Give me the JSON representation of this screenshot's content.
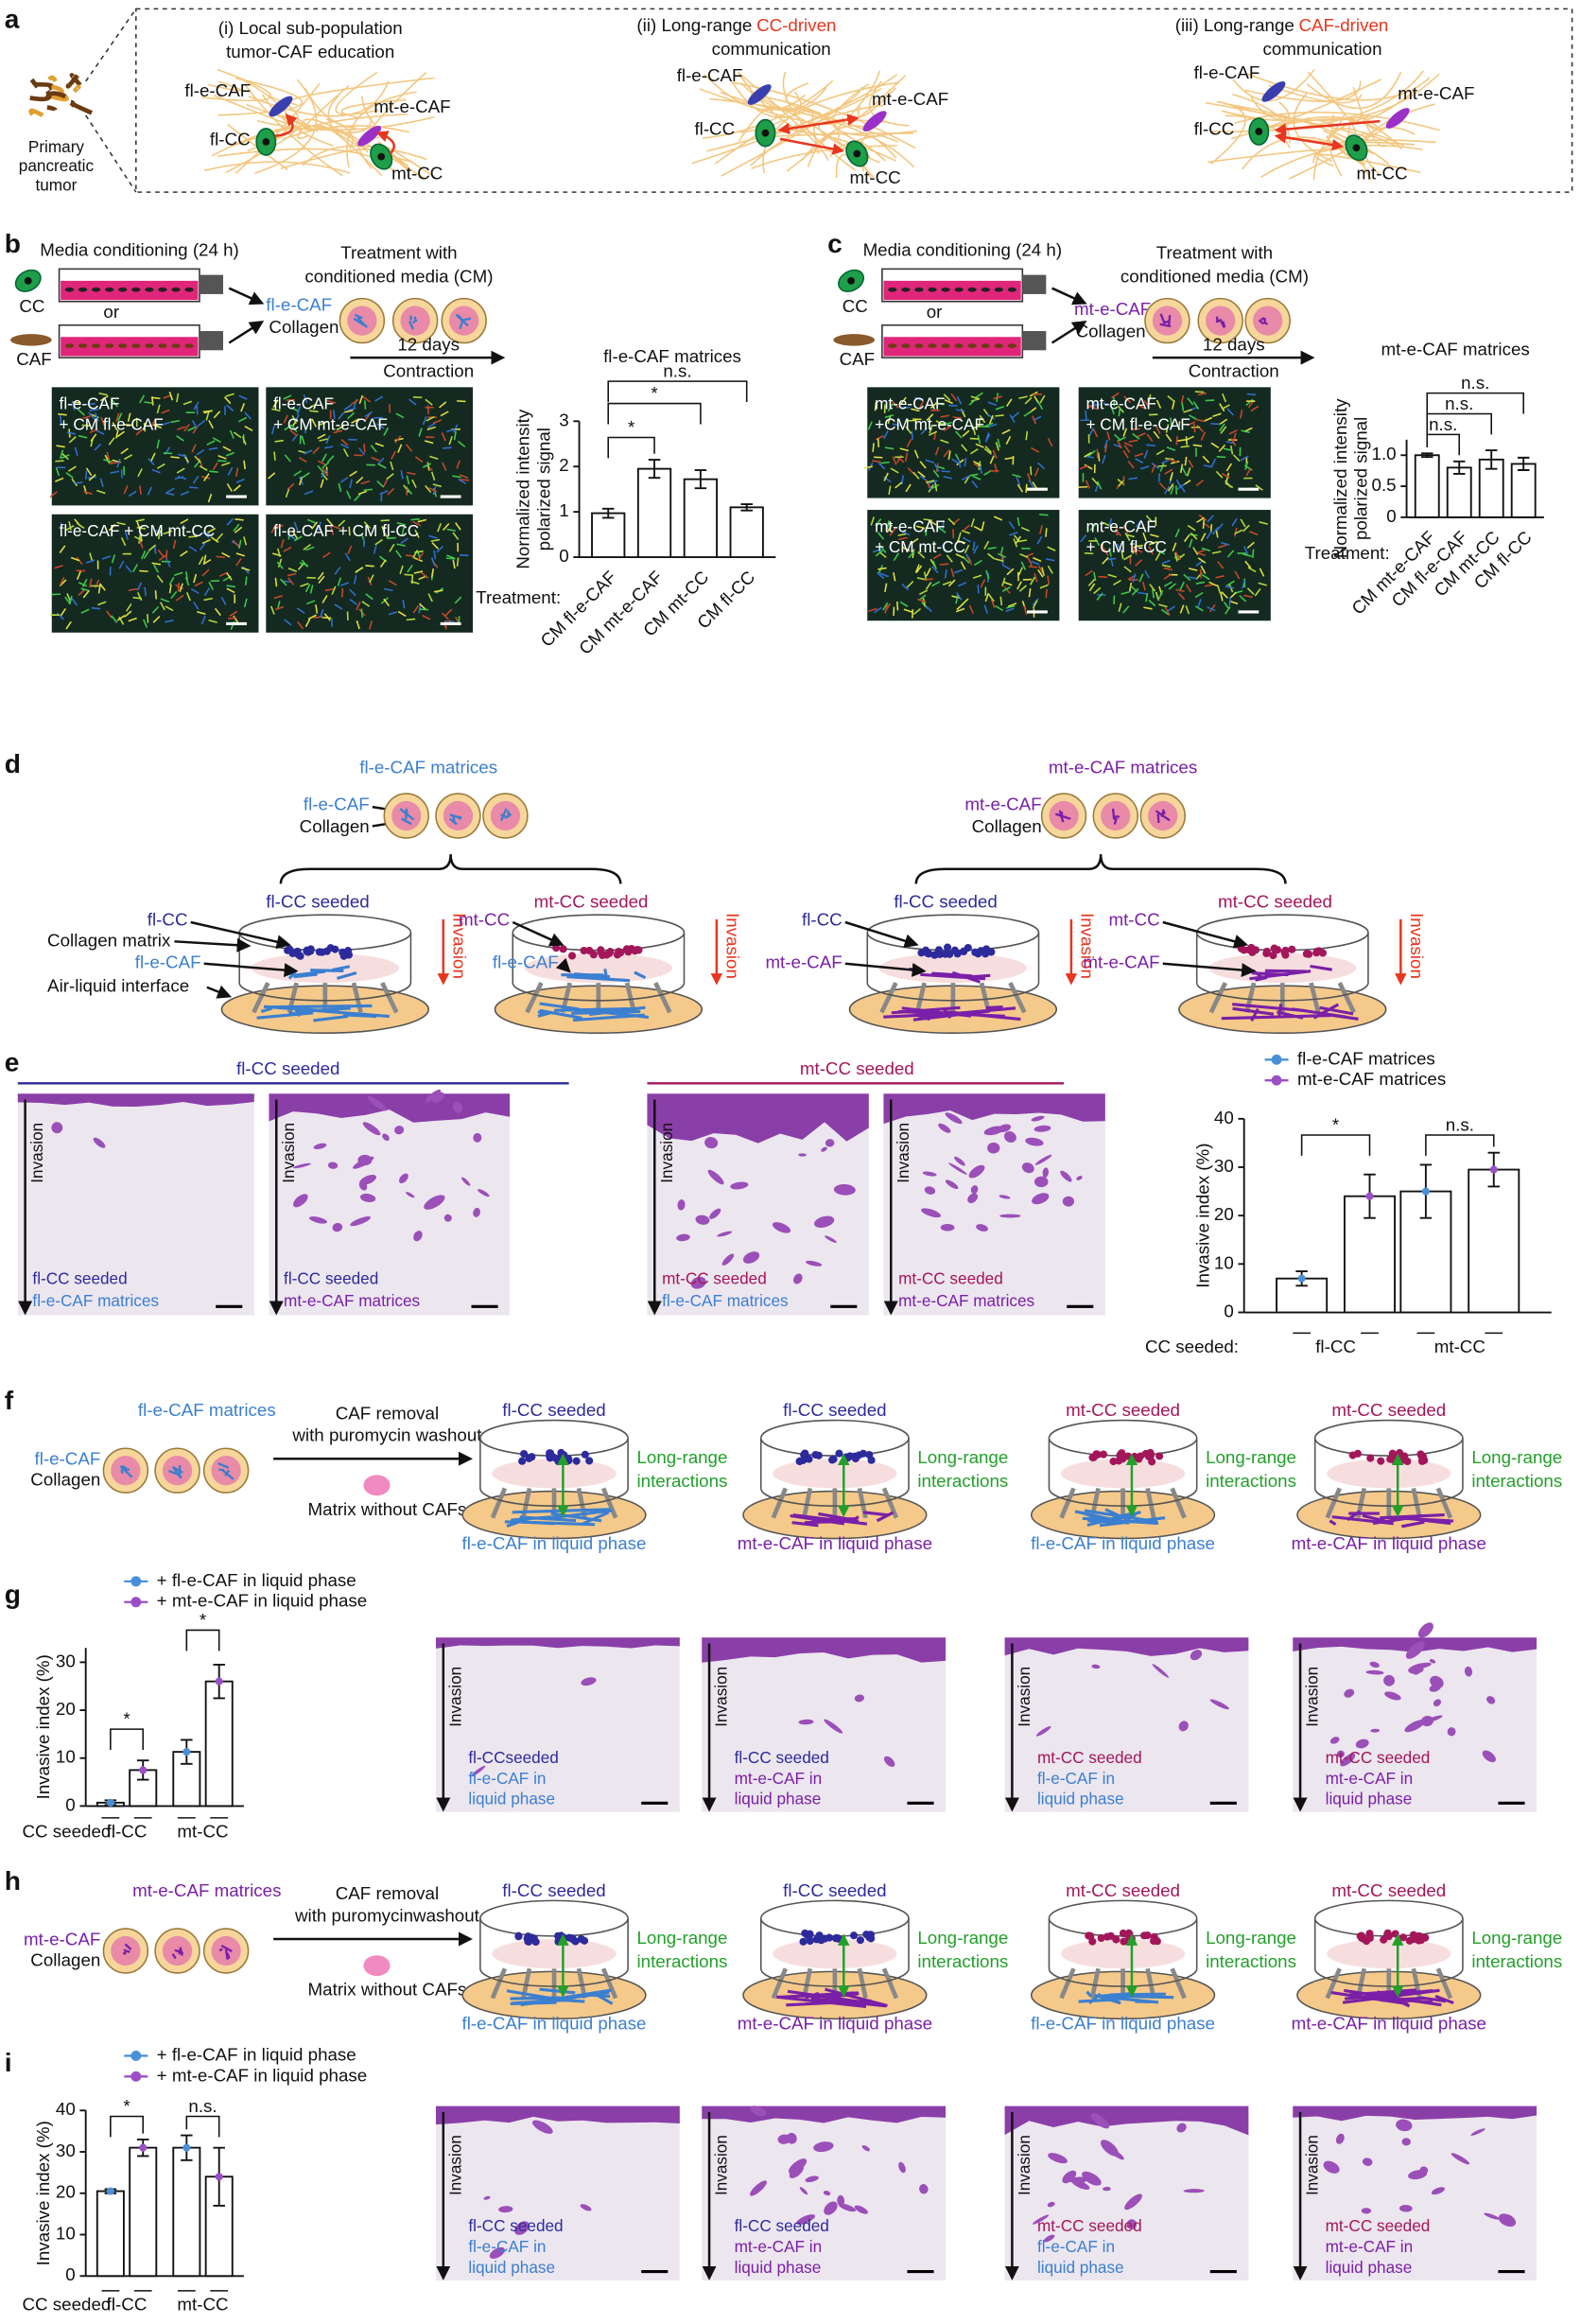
{
  "panels": {
    "a": {
      "letter": "a",
      "tumor": [
        "Primary",
        "pancreatic",
        "tumor"
      ],
      "i": {
        "title": [
          "(i) Local sub-population",
          "tumor-CAF education"
        ],
        "labels": [
          "fl-e-CAF",
          "mt-e-CAF",
          "fl-CC",
          "mt-CC"
        ]
      },
      "ii": {
        "title": [
          "(ii) Long-range",
          "CC-driven",
          "communication"
        ],
        "labels": [
          "fl-e-CAF",
          "mt-e-CAF",
          "fl-CC",
          "mt-CC"
        ]
      },
      "iii": {
        "title": [
          "(iii) Long-range",
          "CAF-driven",
          "communication"
        ],
        "labels": [
          "fl-e-CAF",
          "mt-e-CAF",
          "fl-CC",
          "mt-CC"
        ]
      }
    },
    "b": {
      "letter": "b",
      "media": "Media conditioning (24 h)",
      "cc": "CC",
      "or": "or",
      "caf": "CAF",
      "treat": [
        "Treatment with",
        "conditioned media (CM)"
      ],
      "cell": "fl-e-CAF",
      "collagen": "Collagen",
      "days": "12 days",
      "contraction": "Contraction",
      "images": [
        [
          "fl-e-CAF",
          "+ CM fl-e-CAF"
        ],
        [
          "fl-e-CAF",
          "+ CM mt-e-CAF"
        ],
        [
          "fl-e-CAF + CM mt-CC"
        ],
        [
          "fl-e-CAF + CM fl-CC"
        ]
      ]
    },
    "c": {
      "letter": "c",
      "media": "Media conditioning (24 h)",
      "cc": "CC",
      "or": "or",
      "caf": "CAF",
      "treat": [
        "Treatment with",
        "conditioned media (CM)"
      ],
      "cell": "mt-e-CAF",
      "collagen": "Collagen",
      "days": "12 days",
      "contraction": "Contraction",
      "images": [
        [
          "mt-e-CAF",
          "+CM mt-e-CAF"
        ],
        [
          "mt-e-CAF",
          "+ CM fl-e-CAF"
        ],
        [
          "mt-e-CAF",
          "+ CM mt-CC"
        ],
        [
          "mt-e-CAF",
          "+ CM fl-CC"
        ]
      ]
    },
    "d": {
      "letter": "d",
      "matrix": "Collagen matrix",
      "ali": "Air-liquid interface",
      "groups": [
        {
          "title": "fl-e-CAF matrices",
          "cell": "fl-e-CAF",
          "collagen": "Collagen"
        },
        {
          "title": "mt-e-CAF matrices",
          "cell": "mt-e-CAF",
          "collagen": "Collagen"
        }
      ],
      "dishes": [
        {
          "seeded": "fl-CC seeded",
          "cc": "fl-CC",
          "caf": "fl-e-CAF",
          "invasion": "Invasion"
        },
        {
          "seeded": "mt-CC seeded",
          "cc": "mt-CC",
          "caf": "fl-e-CAF",
          "invasion": "Invasion"
        },
        {
          "seeded": "fl-CC seeded",
          "cc": "fl-CC",
          "caf": "mt-e-CAF",
          "invasion": "Invasion"
        },
        {
          "seeded": "mt-CC seeded",
          "cc": "mt-CC",
          "caf": "mt-e-CAF",
          "invasion": "Invasion"
        }
      ]
    },
    "e": {
      "letter": "e",
      "groups": [
        "fl-CC seeded",
        "mt-CC seeded"
      ],
      "images": [
        {
          "invasion": "Invasion",
          "lines": [
            "fl-CC seeded",
            "fl-e-CAF matrices"
          ]
        },
        {
          "invasion": "Invasion",
          "lines": [
            "fl-CC seeded",
            "mt-e-CAF matrices"
          ]
        },
        {
          "invasion": "Invasion",
          "lines": [
            "mt-CC seeded",
            "fl-e-CAF matrices"
          ]
        },
        {
          "invasion": "Invasion",
          "lines": [
            "mt-CC seeded",
            "mt-e-CAF matrices"
          ]
        }
      ]
    },
    "f": {
      "letter": "f",
      "matrices": "fl-e-CAF matrices",
      "cell": "fl-e-CAF",
      "collagen": "Collagen",
      "removal": [
        "CAF removal",
        "with puromycin washout"
      ],
      "matrix": "Matrix without CAFs",
      "dishes": [
        {
          "seeded": "fl-CC seeded",
          "long": [
            "Long-range",
            "interactions"
          ],
          "liquid": "fl-e-CAF in liquid phase"
        },
        {
          "seeded": "fl-CC seeded",
          "long": [
            "Long-range",
            "interactions"
          ],
          "liquid": "mt-e-CAF in liquid phase"
        },
        {
          "seeded": "mt-CC seeded",
          "long": [
            "Long-range",
            "interactions"
          ],
          "liquid": "fl-e-CAF in liquid phase"
        },
        {
          "seeded": "mt-CC seeded",
          "long": [
            "Long-range",
            "interactions"
          ],
          "liquid": "mt-e-CAF in liquid phase"
        }
      ]
    },
    "g": {
      "letter": "g",
      "images": [
        {
          "invasion": "Invasion",
          "lines": [
            "fl-CCseeded",
            "fl-e-CAF in",
            "liquid phase"
          ]
        },
        {
          "invasion": "Invasion",
          "lines": [
            "fl-CC seeded",
            "mt-e-CAF in",
            "liquid phase"
          ]
        },
        {
          "invasion": "Invasion",
          "lines": [
            "mt-CC seeded",
            "fl-e-CAF in",
            "liquid phase"
          ]
        },
        {
          "invasion": "Invasion",
          "lines": [
            "mt-CC seeded",
            "mt-e-CAF in",
            "liquid phase"
          ]
        }
      ]
    },
    "h": {
      "letter": "h",
      "matrices": "mt-e-CAF matrices",
      "cell": "mt-e-CAF",
      "collagen": "Collagen",
      "removal": [
        "CAF removal",
        "with puromycinwashout"
      ],
      "matrix": "Matrix without CAFs",
      "dishes": [
        {
          "seeded": "fl-CC seeded",
          "long": [
            "Long-range",
            "interactions"
          ],
          "liquid": "fl-e-CAF in liquid phase"
        },
        {
          "seeded": "fl-CC seeded",
          "long": [
            "Long-range",
            "interactions"
          ],
          "liquid": "mt-e-CAF in liquid phase"
        },
        {
          "seeded": "mt-CC seeded",
          "long": [
            "Long-range",
            "interactions"
          ],
          "liquid": "fl-e-CAF in liquid phase"
        },
        {
          "seeded": "mt-CC seeded",
          "long": [
            "Long-range",
            "interactions"
          ],
          "liquid": "mt-e-CAF in liquid phase"
        }
      ]
    },
    "i": {
      "letter": "i",
      "images": [
        {
          "invasion": "Invasion",
          "lines": [
            "fl-CC seeded",
            "fl-e-CAF in",
            "liquid phase"
          ]
        },
        {
          "invasion": "Invasion",
          "lines": [
            "fl-CC seeded",
            "mt-e-CAF in",
            "liquid phase"
          ]
        },
        {
          "invasion": "Invasion",
          "lines": [
            "mt-CC seeded",
            "fl-e-CAF in",
            "liquid phase"
          ]
        },
        {
          "invasion": "Invasion",
          "lines": [
            "mt-CC seeded",
            "mt-e-CAF in",
            "liquid phase"
          ]
        }
      ]
    }
  },
  "chart_data": [
    {
      "type": "bar",
      "title": "fl-e-CAF matrices",
      "ylabel": [
        "Normalized intensity",
        "polarized signal"
      ],
      "xlabel": "Treatment:",
      "categories": [
        "CM fl-e-CAF",
        "CM mt-e-CAF",
        "CM mt-CC",
        "CM fl-CC"
      ],
      "values": [
        0.97,
        1.95,
        1.72,
        1.1
      ],
      "errors": [
        0.1,
        0.2,
        0.2,
        0.07
      ],
      "color": "#ffffff",
      "ylim": [
        0,
        3
      ],
      "yticks": [
        0,
        1,
        2,
        3
      ],
      "annotations": [
        "*",
        "*",
        "n.s."
      ]
    },
    {
      "type": "bar",
      "title": "mt-e-CAF matrices",
      "ylabel": [
        "Normalized intensity",
        "polarized signal"
      ],
      "xlabel": "Treatment:",
      "categories": [
        "CM mt-e-CAF",
        "CM fl-e-CAF",
        "CM mt-CC",
        "CM fl-CC"
      ],
      "values": [
        1.0,
        0.8,
        0.93,
        0.86
      ],
      "errors": [
        0.03,
        0.1,
        0.15,
        0.1
      ],
      "color": "#ffffff",
      "ylim": [
        0,
        1.25
      ],
      "yticks": [
        0,
        0.5,
        {
          "value": 1,
          "label": "1.0"
        }
      ],
      "annotations": [
        "n.s.",
        "n.s.",
        "n.s."
      ]
    },
    {
      "type": "bar",
      "ylabel": [
        "Invasive index (%)"
      ],
      "xlabel": "CC seeded:",
      "categories": [
        "fl-CC",
        "mt-CC"
      ],
      "series": [
        {
          "name": "fl-e-CAF matrices",
          "color": "#4a90d9",
          "values": [
            7,
            25
          ],
          "errors": [
            1.5,
            5.5
          ]
        },
        {
          "name": "mt-e-CAF matrices",
          "color": "#9b4fc7",
          "values": [
            24,
            29.5
          ],
          "errors": [
            4.5,
            3.5
          ]
        }
      ],
      "ylim": [
        0,
        40
      ],
      "yticks": [
        0,
        10,
        20,
        30,
        40
      ],
      "annotations": [
        "*",
        "n.s."
      ]
    },
    {
      "type": "bar",
      "ylabel": [
        "Invasive index (%)"
      ],
      "xlabel": "CC seeded:",
      "categories": [
        "fl-CC",
        "mt-CC"
      ],
      "series": [
        {
          "name": "+ fl-e-CAF in liquid phase",
          "color": "#4a90d9",
          "values": [
            0.7,
            11.3
          ],
          "errors": [
            0.5,
            2.5
          ]
        },
        {
          "name": "+ mt-e-CAF in liquid phase",
          "color": "#9b4fc7",
          "values": [
            7.5,
            26
          ],
          "errors": [
            2,
            3.5
          ]
        }
      ],
      "ylim": [
        0,
        33
      ],
      "yticks": [
        0,
        10,
        20,
        30
      ],
      "annotations": [
        "*",
        "*"
      ]
    },
    {
      "type": "bar",
      "ylabel": [
        "Invasive index (%)"
      ],
      "xlabel": "CC seeded:",
      "categories": [
        "fl-CC",
        "mt-CC"
      ],
      "series": [
        {
          "name": "+ fl-e-CAF in liquid phase",
          "color": "#4a90d9",
          "values": [
            20.5,
            31
          ],
          "errors": [
            0.5,
            3
          ]
        },
        {
          "name": "+ mt-e-CAF in liquid phase",
          "color": "#9b4fc7",
          "values": [
            31,
            24
          ],
          "errors": [
            2,
            7
          ]
        }
      ],
      "ylim": [
        0,
        40
      ],
      "yticks": [
        0,
        10,
        20,
        30,
        40
      ],
      "annotations": [
        "*",
        "n.s."
      ]
    }
  ]
}
